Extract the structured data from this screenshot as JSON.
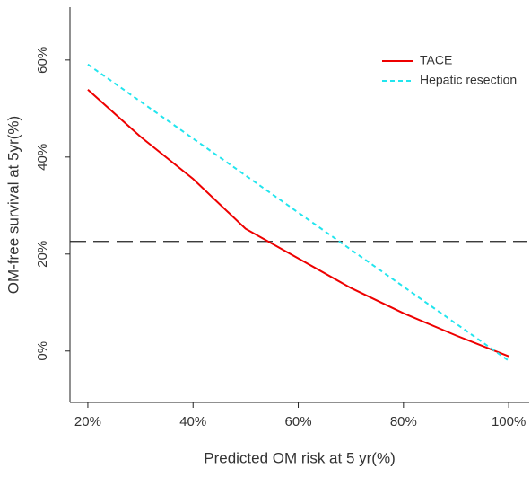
{
  "chart_data": {
    "type": "line",
    "xlabel": "Predicted  OM risk at 5 yr(%)",
    "ylabel": "OM-free survival at 5yr(%)",
    "series": [
      {
        "name": "TACE",
        "color": "#ee0000",
        "dash": false,
        "x": [
          20,
          30,
          40,
          50,
          60,
          70,
          80,
          90,
          100
        ],
        "values": [
          53.9,
          44.2,
          35.5,
          25.2,
          19.1,
          13.0,
          7.8,
          3.2,
          -1.1
        ]
      },
      {
        "name": "Hepatic resection",
        "color": "#22e5ee",
        "dash": true,
        "x": [
          20,
          100
        ],
        "values": [
          59.1,
          -2.0
        ]
      }
    ],
    "hlines": [
      22.6
    ],
    "xlim": [
      16.6,
      103.9
    ],
    "ylim": [
      -10.6,
      70.9
    ],
    "xticks": [
      {
        "value": 20,
        "label": "20%"
      },
      {
        "value": 40,
        "label": "40%"
      },
      {
        "value": 60,
        "label": "60%"
      },
      {
        "value": 80,
        "label": "80%"
      },
      {
        "value": 100,
        "label": "100%"
      }
    ],
    "yticks": [
      {
        "value": 0,
        "label": "0%"
      },
      {
        "value": 20,
        "label": "20%"
      },
      {
        "value": 40,
        "label": "40%"
      },
      {
        "value": 60,
        "label": "60%"
      }
    ],
    "legend": "top-right"
  }
}
